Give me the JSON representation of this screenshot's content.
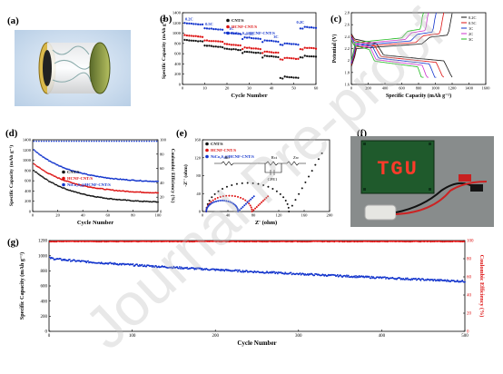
{
  "watermark": "Journal Pre-proof",
  "panels": {
    "a": {
      "label": "(a)"
    },
    "b": {
      "label": "(b)",
      "chart_data": {
        "type": "scatter",
        "xlabel": "Cycle Number",
        "ylabel": "Specific Capacity (mAh g⁻¹)",
        "xlim": [
          0,
          60
        ],
        "ylim": [
          0,
          1400
        ],
        "xticks": [
          0,
          10,
          20,
          30,
          40,
          50,
          60
        ],
        "yticks": [
          0,
          200,
          400,
          600,
          800,
          1000,
          1200,
          1400
        ],
        "rate_labels": [
          {
            "text": "0.2C",
            "x": 3,
            "y": 1250
          },
          {
            "text": "0.5C",
            "x": 12,
            "y": 1150
          },
          {
            "text": "1C",
            "x": 22,
            "y": 1060
          },
          {
            "text": "2C",
            "x": 31,
            "y": 960
          },
          {
            "text": "3C",
            "x": 42,
            "y": 900
          },
          {
            "text": "0.2C",
            "x": 53,
            "y": 1190
          }
        ],
        "series": [
          {
            "name": "CNT/S",
            "color": "#111111",
            "values": [
              870,
              760,
              700,
              640,
              560,
              150,
              560
            ]
          },
          {
            "name": "HCNF-CNT/S",
            "color": "#dd1111",
            "values": [
              960,
              860,
              790,
              720,
              640,
              520,
              720
            ]
          },
          {
            "name": "NiCo₂S₄@HCNF-CNT/S",
            "color": "#1133cc",
            "values": [
              1200,
              1100,
              1010,
              920,
              860,
              800,
              1120
            ]
          }
        ]
      }
    },
    "c": {
      "label": "(c)",
      "chart_data": {
        "type": "line",
        "xlabel": "Specific Capacity (mAh g⁻¹)",
        "ylabel": "Potential (V)",
        "xlim": [
          0,
          1600
        ],
        "ylim": [
          1.6,
          2.8
        ],
        "xticks": [
          0,
          200,
          400,
          600,
          800,
          1000,
          1200,
          1400,
          1600
        ],
        "yticks": [
          1.6,
          1.8,
          2.0,
          2.2,
          2.4,
          2.6,
          2.8
        ],
        "series": [
          {
            "name": "0.2C",
            "color": "#111111",
            "capacity": 1200
          },
          {
            "name": "0.5C",
            "color": "#dd1111",
            "capacity": 1100
          },
          {
            "name": "1C",
            "color": "#1133cc",
            "capacity": 1010
          },
          {
            "name": "2C",
            "color": "#cc33cc",
            "capacity": 920
          },
          {
            "name": "3C",
            "color": "#22bb22",
            "capacity": 860
          }
        ]
      }
    },
    "d": {
      "label": "(d)",
      "chart_data": {
        "type": "scatter",
        "xlabel": "Cycle Number",
        "ylabel": "Specific Capacity (mAh g⁻¹)",
        "y2label": "Coulombic Efficiency (%)",
        "xlim": [
          0,
          100
        ],
        "ylim": [
          0,
          1400
        ],
        "y2lim": [
          0,
          100
        ],
        "xticks": [
          0,
          20,
          40,
          60,
          80,
          100
        ],
        "yticks": [
          0,
          200,
          400,
          600,
          800,
          1000,
          1200,
          1400
        ],
        "y2ticks": [
          0,
          20,
          40,
          60,
          80,
          100
        ],
        "series": [
          {
            "name": "CNT/S",
            "color": "#111111",
            "start": 800,
            "end": 160
          },
          {
            "name": "HCNF-CNT/S",
            "color": "#dd1111",
            "start": 930,
            "end": 340
          },
          {
            "name": "NiCo₂S₄@HCNF-CNT/S",
            "color": "#1133cc",
            "start": 1200,
            "end": 560
          }
        ],
        "coulombic_efficiency": 98
      }
    },
    "e": {
      "label": "(e)",
      "chart_data": {
        "type": "scatter",
        "xlabel": "Z' (ohm)",
        "ylabel": "-Z'' (ohm)",
        "xlim": [
          0,
          200
        ],
        "ylim": [
          0,
          160
        ],
        "xticks": [
          0,
          40,
          80,
          120,
          160,
          200
        ],
        "yticks": [
          0,
          40,
          80,
          120,
          160
        ],
        "series": [
          {
            "name": "CNT/S",
            "color": "#111111",
            "Rct": 130
          },
          {
            "name": "HCNF-CNT/S",
            "color": "#dd1111",
            "Rct": 72
          },
          {
            "name": "NiCo₂S₄@HCNF-CNT/S",
            "color": "#1133cc",
            "Rct": 50
          }
        ],
        "circuit": {
          "r0": "Ro",
          "rct": "Rct",
          "zw": "Zw",
          "cpe": "CPE1"
        }
      }
    },
    "f": {
      "label": "(f)",
      "led_text": "TGU"
    },
    "g": {
      "label": "(g)",
      "chart_data": {
        "type": "scatter",
        "xlabel": "Cycle Number",
        "ylabel": "Specific Capacity (mAh g⁻¹)",
        "y2label": "Coulombic Efficiency (%)",
        "xlim": [
          0,
          500
        ],
        "ylim": [
          0,
          1200
        ],
        "y2lim": [
          0,
          100
        ],
        "xticks": [
          0,
          100,
          200,
          300,
          400,
          500
        ],
        "yticks": [
          0,
          200,
          400,
          600,
          800,
          1000,
          1200
        ],
        "y2ticks": [
          0,
          20,
          40,
          60,
          80,
          100
        ],
        "series": [
          {
            "name": "Specific Capacity",
            "color": "#1133cc",
            "start": 970,
            "end": 660
          },
          {
            "name": "Coulombic Efficiency",
            "color": "#ee1111",
            "value": 99
          }
        ]
      }
    }
  }
}
